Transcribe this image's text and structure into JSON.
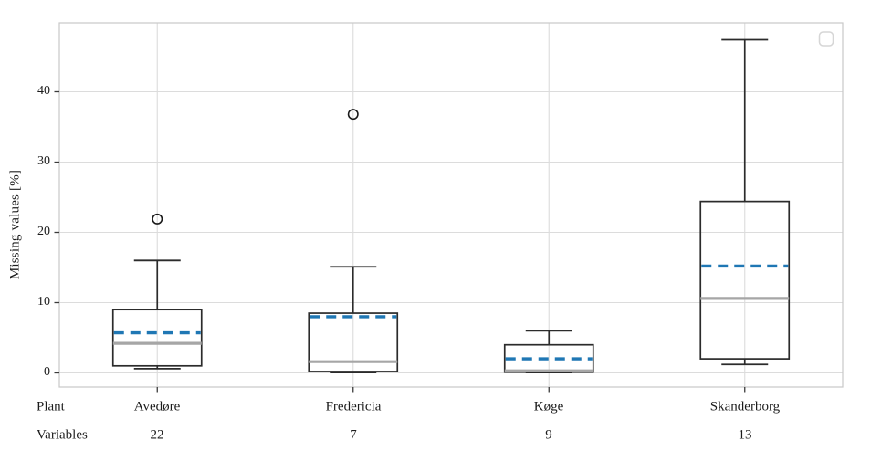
{
  "chart": {
    "ylabel": "Missing values [%]",
    "yticks": [
      "0",
      "10",
      "20",
      "30",
      "40"
    ],
    "row_label_plant": "Plant",
    "row_label_variables": "Variables",
    "colors": {
      "box_edge": "#2b2b2b",
      "median": "#a6a6a6",
      "mean": "#1f77b4",
      "grid": "#dcdcdc",
      "spine": "#c8c8c8",
      "tick": "#3a3a3a",
      "text": "#1c1c1c",
      "legend_border": "#d6d6d6"
    }
  },
  "chart_data": {
    "type": "box",
    "title": "",
    "xlabel": "Plant",
    "ylabel": "Missing values [%]",
    "ylim": [
      -2,
      50
    ],
    "grid": true,
    "legend": "empty",
    "yticks": [
      0,
      10,
      20,
      30,
      40
    ],
    "categories": [
      "Avedøre",
      "Fredericia",
      "Køge",
      "Skanderborg"
    ],
    "variables": [
      22,
      7,
      9,
      13
    ],
    "series": [
      {
        "name": "Avedøre",
        "variables": 22,
        "whisker_low": 0.6,
        "q1": 1.0,
        "median": 4.2,
        "mean": 5.7,
        "q3": 9.0,
        "whisker_high": 16.0,
        "outliers": [
          21.9
        ]
      },
      {
        "name": "Fredericia",
        "variables": 7,
        "whisker_low": 0.05,
        "q1": 0.2,
        "median": 1.6,
        "mean": 8.0,
        "q3": 8.5,
        "whisker_high": 15.1,
        "outliers": [
          36.8
        ]
      },
      {
        "name": "Køge",
        "variables": 9,
        "whisker_low": 0.05,
        "q1": 0.1,
        "median": 0.3,
        "mean": 2.0,
        "q3": 4.0,
        "whisker_high": 6.0,
        "outliers": []
      },
      {
        "name": "Skanderborg",
        "variables": 13,
        "whisker_low": 1.2,
        "q1": 2.0,
        "median": 10.6,
        "mean": 15.2,
        "q3": 24.4,
        "whisker_high": 47.4,
        "outliers": []
      }
    ]
  }
}
